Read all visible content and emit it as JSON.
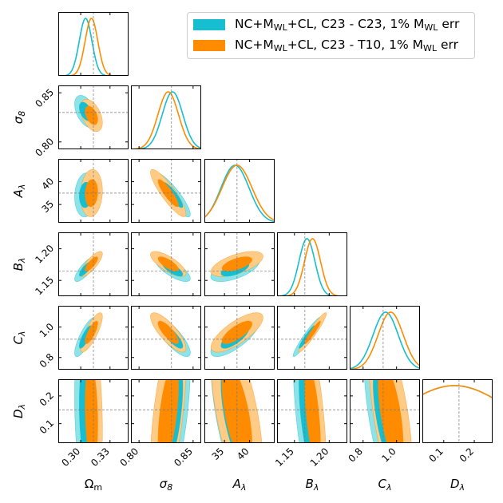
{
  "chart_data": {
    "type": "corner",
    "parameters": [
      {
        "key": "Om",
        "label": "Ω",
        "sub": "m",
        "italic": false,
        "truth": 0.313,
        "range": [
          0.277,
          0.349
        ],
        "ticks": [
          0.3,
          0.33
        ],
        "tick_labels": [
          "0.30",
          "0.33"
        ]
      },
      {
        "key": "s8",
        "label": "σ",
        "sub": "8",
        "italic": true,
        "truth": 0.83,
        "range": [
          0.7925,
          0.8575
        ],
        "ticks": [
          0.8,
          0.85
        ],
        "tick_labels": [
          "0.80",
          "0.85"
        ]
      },
      {
        "key": "A",
        "label": "A",
        "sub": "λ",
        "italic": true,
        "truth": 37.5,
        "range": [
          31.0,
          45.0
        ],
        "ticks": [
          35,
          40
        ],
        "tick_labels": [
          "35",
          "40"
        ]
      },
      {
        "key": "B",
        "label": "B",
        "sub": "λ",
        "italic": true,
        "truth": 1.165,
        "range": [
          1.125,
          1.226
        ],
        "ticks": [
          1.15,
          1.2
        ],
        "tick_labels": [
          "1.15",
          "1.20"
        ]
      },
      {
        "key": "C",
        "label": "C",
        "sub": "λ",
        "italic": true,
        "truth": 0.92,
        "range": [
          0.72,
          1.14
        ],
        "ticks": [
          0.8,
          1.0
        ],
        "tick_labels": [
          "0.8",
          "1.0"
        ]
      },
      {
        "key": "D",
        "label": "D",
        "sub": "λ",
        "italic": true,
        "truth": 0.15,
        "range": [
          0.03,
          0.26
        ],
        "ticks": [
          0.1,
          0.2
        ],
        "tick_labels": [
          "0.1",
          "0.2"
        ]
      }
    ],
    "series": [
      {
        "name": "NC+M_WL+CL, C23 - C23, 1% M_WL err",
        "color": "#17becf",
        "fill_inner": "#17becf",
        "fill_outer": "#8de3e8",
        "mean": [
          0.305,
          0.831,
          37.1,
          1.168,
          0.935,
          0.135
        ],
        "sigma": [
          0.0065,
          0.0095,
          2.8,
          0.0115,
          0.075,
          0.18
        ],
        "corr": [
          [
            1,
            -0.45,
            0.1,
            0.8,
            0.8,
            -0.2
          ],
          [
            -0.45,
            1,
            -0.88,
            -0.75,
            -0.8,
            0.55
          ],
          [
            0.1,
            -0.88,
            1,
            0.6,
            0.75,
            -0.6
          ],
          [
            0.8,
            -0.75,
            0.6,
            1,
            0.95,
            -0.6
          ],
          [
            0.8,
            -0.8,
            0.75,
            0.95,
            1,
            -0.6
          ],
          [
            -0.2,
            0.55,
            -0.6,
            -0.6,
            -0.6,
            1
          ]
        ]
      },
      {
        "name": "NC+M_WL+CL, C23 - T10, 1% M_WL err",
        "color": "#ff8c00",
        "fill_inner": "#ff8c00",
        "fill_outer": "#ffcc88",
        "mean": [
          0.311,
          0.827,
          37.5,
          1.176,
          0.965,
          0.135
        ],
        "sigma": [
          0.0065,
          0.0095,
          3.0,
          0.0115,
          0.075,
          0.18
        ],
        "corr": [
          [
            1,
            -0.45,
            0.1,
            0.8,
            0.8,
            -0.2
          ],
          [
            -0.45,
            1,
            -0.88,
            -0.75,
            -0.8,
            0.55
          ],
          [
            0.1,
            -0.88,
            1,
            0.6,
            0.75,
            -0.6
          ],
          [
            0.8,
            -0.75,
            0.6,
            1,
            0.95,
            -0.6
          ],
          [
            0.8,
            -0.8,
            0.75,
            0.95,
            1,
            -0.6
          ],
          [
            -0.2,
            0.55,
            -0.6,
            -0.6,
            -0.6,
            1
          ]
        ]
      }
    ],
    "legend_placement": "top-right",
    "contour_levels": [
      "68%",
      "95%"
    ],
    "truth_lines": "dashed gray"
  },
  "legend": {
    "entries": [
      {
        "pre": "NC+M",
        "sub": "WL",
        "mid": "+CL, C23 - C23, 1% M",
        "sub2": "WL",
        "post": " err",
        "color": "#17becf"
      },
      {
        "pre": "NC+M",
        "sub": "WL",
        "mid": "+CL, C23 - T10, 1% M",
        "sub2": "WL",
        "post": " err",
        "color": "#ff8c00"
      }
    ]
  }
}
